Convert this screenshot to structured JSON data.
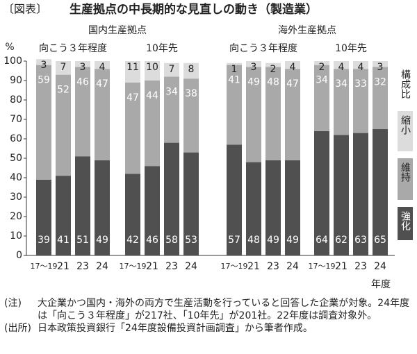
{
  "chart_data": {
    "type": "bar",
    "stacked": true,
    "figure_label": "〔図表〕",
    "title": "生産拠点の中長期的な見直しの動き（製造業）",
    "y_unit": "%",
    "x_unit": "年度",
    "legend_title": "構成比",
    "groups": [
      {
        "label": "国内生産拠点",
        "subgroups": [
          "向こう３年程度",
          "10年先"
        ]
      },
      {
        "label": "海外生産拠点",
        "subgroups": [
          "向こう３年程度",
          "10年先"
        ]
      }
    ],
    "categories": [
      "17～19",
      "21",
      "23",
      "24",
      "17～19",
      "21",
      "23",
      "24",
      "17～19",
      "21",
      "23",
      "24",
      "17～19",
      "21",
      "23",
      "24"
    ],
    "series": [
      {
        "name": "強化",
        "color": "#505050",
        "values": [
          39,
          41,
          51,
          49,
          42,
          46,
          58,
          53,
          57,
          48,
          49,
          49,
          64,
          62,
          63,
          65
        ]
      },
      {
        "name": "維持",
        "color": "#a9a9a9",
        "values": [
          59,
          52,
          46,
          47,
          47,
          44,
          34,
          38,
          41,
          49,
          48,
          47,
          34,
          34,
          33,
          32
        ]
      },
      {
        "name": "縮小",
        "color": "#dcdcdc",
        "values": [
          3,
          7,
          3,
          4,
          11,
          10,
          7,
          8,
          1,
          3,
          2,
          4,
          2,
          4,
          4,
          3
        ]
      }
    ],
    "ylim": [
      0,
      100
    ],
    "yticks": [
      0,
      10,
      20,
      30,
      40,
      50,
      60,
      70,
      80,
      90,
      100
    ],
    "notes": [
      {
        "label": "(注)",
        "text": "大企業かつ国内・海外の両方で生産活動を行っていると回答した企業が対象。24年度は「向こう３年程度」が217社、「10年先」が201社。22年度は調査対象外。"
      },
      {
        "label": "(出所)",
        "text": "日本政策投資銀行「24年度設備投資計画調査」から筆者作成。"
      }
    ]
  }
}
